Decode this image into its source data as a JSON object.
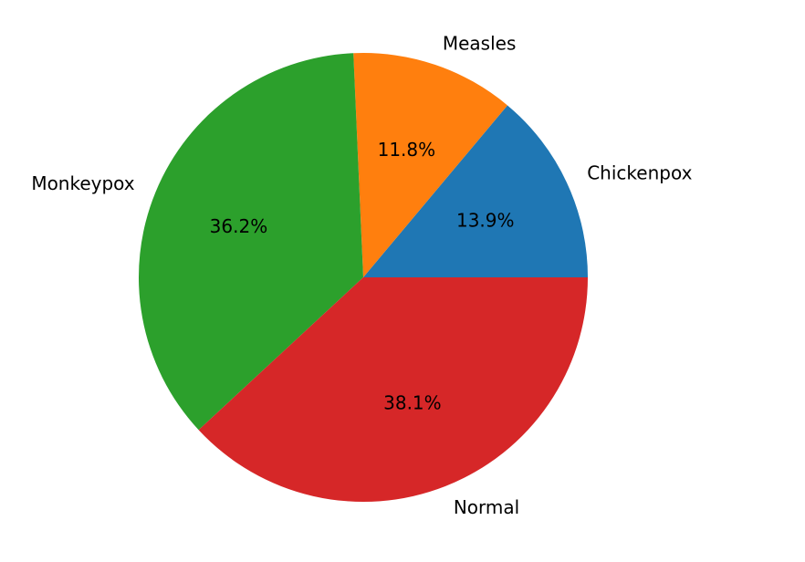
{
  "chart_data": {
    "type": "pie",
    "categories": [
      "Chickenpox",
      "Measles",
      "Monkeypox",
      "Normal"
    ],
    "values": [
      13.9,
      11.8,
      36.2,
      38.1
    ],
    "percent_labels": [
      "13.9%",
      "11.8%",
      "36.2%",
      "38.1%"
    ],
    "colors": [
      "#1f77b4",
      "#ff7f0e",
      "#2ca02c",
      "#d62728"
    ],
    "start_angle_deg": 0,
    "direction": "counterclockwise",
    "title": "",
    "legend": false
  }
}
